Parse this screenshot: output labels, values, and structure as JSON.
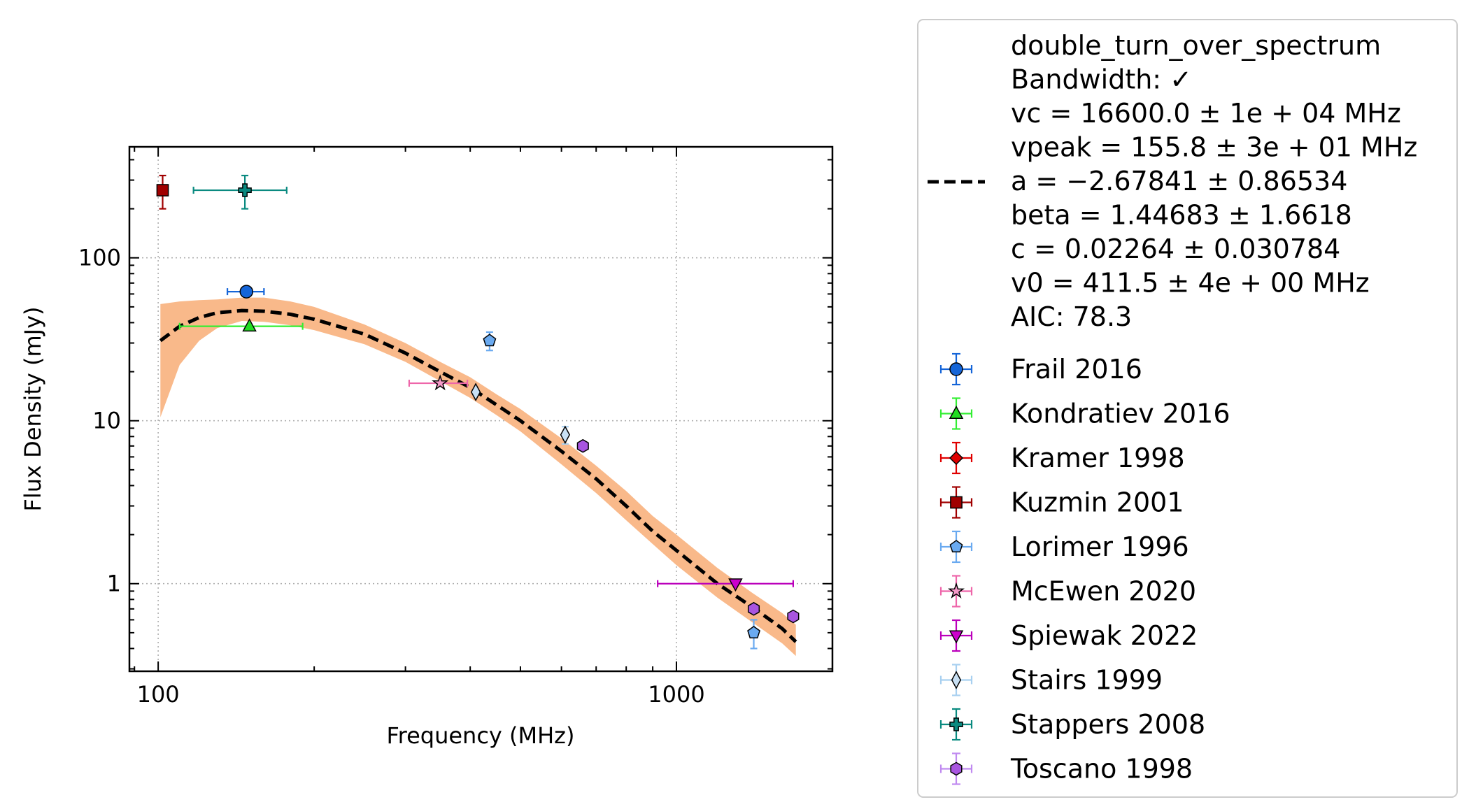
{
  "chart_data": {
    "type": "scatter",
    "xlabel": "Frequency (MHz)",
    "ylabel": "Flux Density (mJy)",
    "xscale": "log",
    "yscale": "log",
    "xlim": [
      88,
      2000
    ],
    "ylim": [
      0.29,
      480
    ],
    "xticks": [
      {
        "value": 100,
        "label": "100"
      },
      {
        "value": 1000,
        "label": "1000"
      }
    ],
    "yticks": [
      {
        "value": 1,
        "label": "1"
      },
      {
        "value": 10,
        "label": "10"
      },
      {
        "value": 100,
        "label": "100"
      }
    ],
    "grid": true,
    "legend_position": "outside-right",
    "fit": {
      "name": "double_turn_over_spectrum",
      "legend_lines": [
        "double_turn_over_spectrum",
        "Bandwidth: ✓",
        "vc = 16600.0 ± 1e + 04 MHz",
        "vpeak = 155.8 ± 3e + 01 MHz",
        "a = −2.67841 ± 0.86534",
        "beta = 1.44683 ± 1.6618",
        "c = 0.02264 ± 0.030784",
        "v0 = 411.5 ± 4e + 00 MHz",
        "AIC: 78.3"
      ],
      "line_color": "#000000",
      "band_color": "#f9b98a",
      "curve": [
        [
          101,
          31
        ],
        [
          110,
          38
        ],
        [
          120,
          43
        ],
        [
          130,
          46
        ],
        [
          145,
          47.5
        ],
        [
          160,
          47
        ],
        [
          180,
          45
        ],
        [
          200,
          42
        ],
        [
          250,
          34
        ],
        [
          300,
          26
        ],
        [
          350,
          20
        ],
        [
          400,
          16
        ],
        [
          450,
          12.5
        ],
        [
          500,
          10
        ],
        [
          600,
          6.5
        ],
        [
          700,
          4.4
        ],
        [
          800,
          3.0
        ],
        [
          900,
          2.1
        ],
        [
          1000,
          1.6
        ],
        [
          1200,
          1.0
        ],
        [
          1400,
          0.72
        ],
        [
          1600,
          0.53
        ],
        [
          1700,
          0.44
        ]
      ],
      "band_upper": [
        [
          101,
          52
        ],
        [
          110,
          54
        ],
        [
          120,
          55
        ],
        [
          130,
          55.5
        ],
        [
          145,
          57
        ],
        [
          160,
          57
        ],
        [
          180,
          54
        ],
        [
          200,
          50
        ],
        [
          250,
          39
        ],
        [
          300,
          30
        ],
        [
          350,
          23
        ],
        [
          400,
          18.5
        ],
        [
          450,
          14.5
        ],
        [
          500,
          11.8
        ],
        [
          600,
          7.8
        ],
        [
          700,
          5.3
        ],
        [
          800,
          3.7
        ],
        [
          900,
          2.6
        ],
        [
          1000,
          2.0
        ],
        [
          1200,
          1.25
        ],
        [
          1400,
          0.88
        ],
        [
          1600,
          0.66
        ],
        [
          1700,
          0.56
        ]
      ],
      "band_lower": [
        [
          101,
          10.5
        ],
        [
          110,
          22
        ],
        [
          120,
          31
        ],
        [
          130,
          37
        ],
        [
          145,
          41
        ],
        [
          160,
          40.5
        ],
        [
          180,
          38.5
        ],
        [
          200,
          36
        ],
        [
          250,
          29.5
        ],
        [
          300,
          23
        ],
        [
          350,
          17.5
        ],
        [
          400,
          13.8
        ],
        [
          450,
          10.8
        ],
        [
          500,
          8.6
        ],
        [
          600,
          5.4
        ],
        [
          700,
          3.6
        ],
        [
          800,
          2.45
        ],
        [
          900,
          1.75
        ],
        [
          1000,
          1.3
        ],
        [
          1200,
          0.82
        ],
        [
          1400,
          0.58
        ],
        [
          1600,
          0.43
        ],
        [
          1700,
          0.36
        ]
      ]
    },
    "series": [
      {
        "name": "Frail 2016",
        "marker": "circle",
        "color": "#1565d8",
        "ecolor": "#1565d8",
        "points": [
          {
            "x": 148,
            "y": 62,
            "xerr": [
              12,
              12
            ],
            "yerr": [
              0,
              0
            ]
          }
        ]
      },
      {
        "name": "Kondratiev 2016",
        "marker": "triangle-up",
        "color": "#22dd22",
        "ecolor": "#33ee33",
        "points": [
          {
            "x": 150,
            "y": 38,
            "xerr": [
              40,
              40
            ],
            "yerr": [
              0,
              0
            ]
          }
        ]
      },
      {
        "name": "Kramer 1998",
        "marker": "diamond",
        "color": "#e00000",
        "ecolor": "#e00000",
        "points": []
      },
      {
        "name": "Kuzmin 2001",
        "marker": "square",
        "color": "#a00000",
        "ecolor": "#a00000",
        "points": [
          {
            "x": 102,
            "y": 260,
            "xerr": [
              0,
              0
            ],
            "yerr": [
              60,
              60
            ]
          }
        ]
      },
      {
        "name": "Lorimer 1996",
        "marker": "pentagon",
        "color": "#6aaaf0",
        "ecolor": "#6aaaf0",
        "points": [
          {
            "x": 436,
            "y": 31,
            "xerr": [
              8,
              8
            ],
            "yerr": [
              4,
              4
            ]
          },
          {
            "x": 1410,
            "y": 0.5,
            "xerr": [
              0,
              0
            ],
            "yerr": [
              0.1,
              0.1
            ]
          }
        ]
      },
      {
        "name": "McEwen 2020",
        "marker": "star",
        "color": "#f59ac8",
        "ecolor": "#ee66aa",
        "points": [
          {
            "x": 350,
            "y": 17,
            "xerr": [
              45,
              45
            ],
            "yerr": [
              0,
              0
            ]
          }
        ]
      },
      {
        "name": "Spiewak 2022",
        "marker": "triangle-down",
        "color": "#cc00cc",
        "ecolor": "#bb00bb",
        "points": [
          {
            "x": 1300,
            "y": 1.0,
            "xerr": [
              380,
              380
            ],
            "yerr": [
              0,
              0
            ]
          }
        ]
      },
      {
        "name": "Stairs 1999",
        "marker": "thin-diamond",
        "color": "#c8e0f4",
        "ecolor": "#a8d0f0",
        "points": [
          {
            "x": 410,
            "y": 15,
            "xerr": [
              0,
              0
            ],
            "yerr": [
              0,
              0
            ]
          },
          {
            "x": 610,
            "y": 8.2,
            "xerr": [
              0,
              0
            ],
            "yerr": [
              1,
              1
            ]
          }
        ]
      },
      {
        "name": "Stappers 2008",
        "marker": "plus",
        "color": "#0a8a80",
        "ecolor": "#0a8a80",
        "points": [
          {
            "x": 147,
            "y": 260,
            "xerr": [
              30,
              30
            ],
            "yerr": [
              60,
              60
            ]
          }
        ]
      },
      {
        "name": "Toscano 1998",
        "marker": "hexagon",
        "color": "#a855e0",
        "ecolor": "#c08af0",
        "points": [
          {
            "x": 660,
            "y": 7,
            "xerr": [
              0,
              0
            ],
            "yerr": [
              0,
              0
            ]
          },
          {
            "x": 1410,
            "y": 0.7,
            "xerr": [
              0,
              0
            ],
            "yerr": [
              0,
              0
            ]
          },
          {
            "x": 1680,
            "y": 0.63,
            "xerr": [
              0,
              0
            ],
            "yerr": [
              0,
              0
            ]
          }
        ]
      }
    ]
  }
}
